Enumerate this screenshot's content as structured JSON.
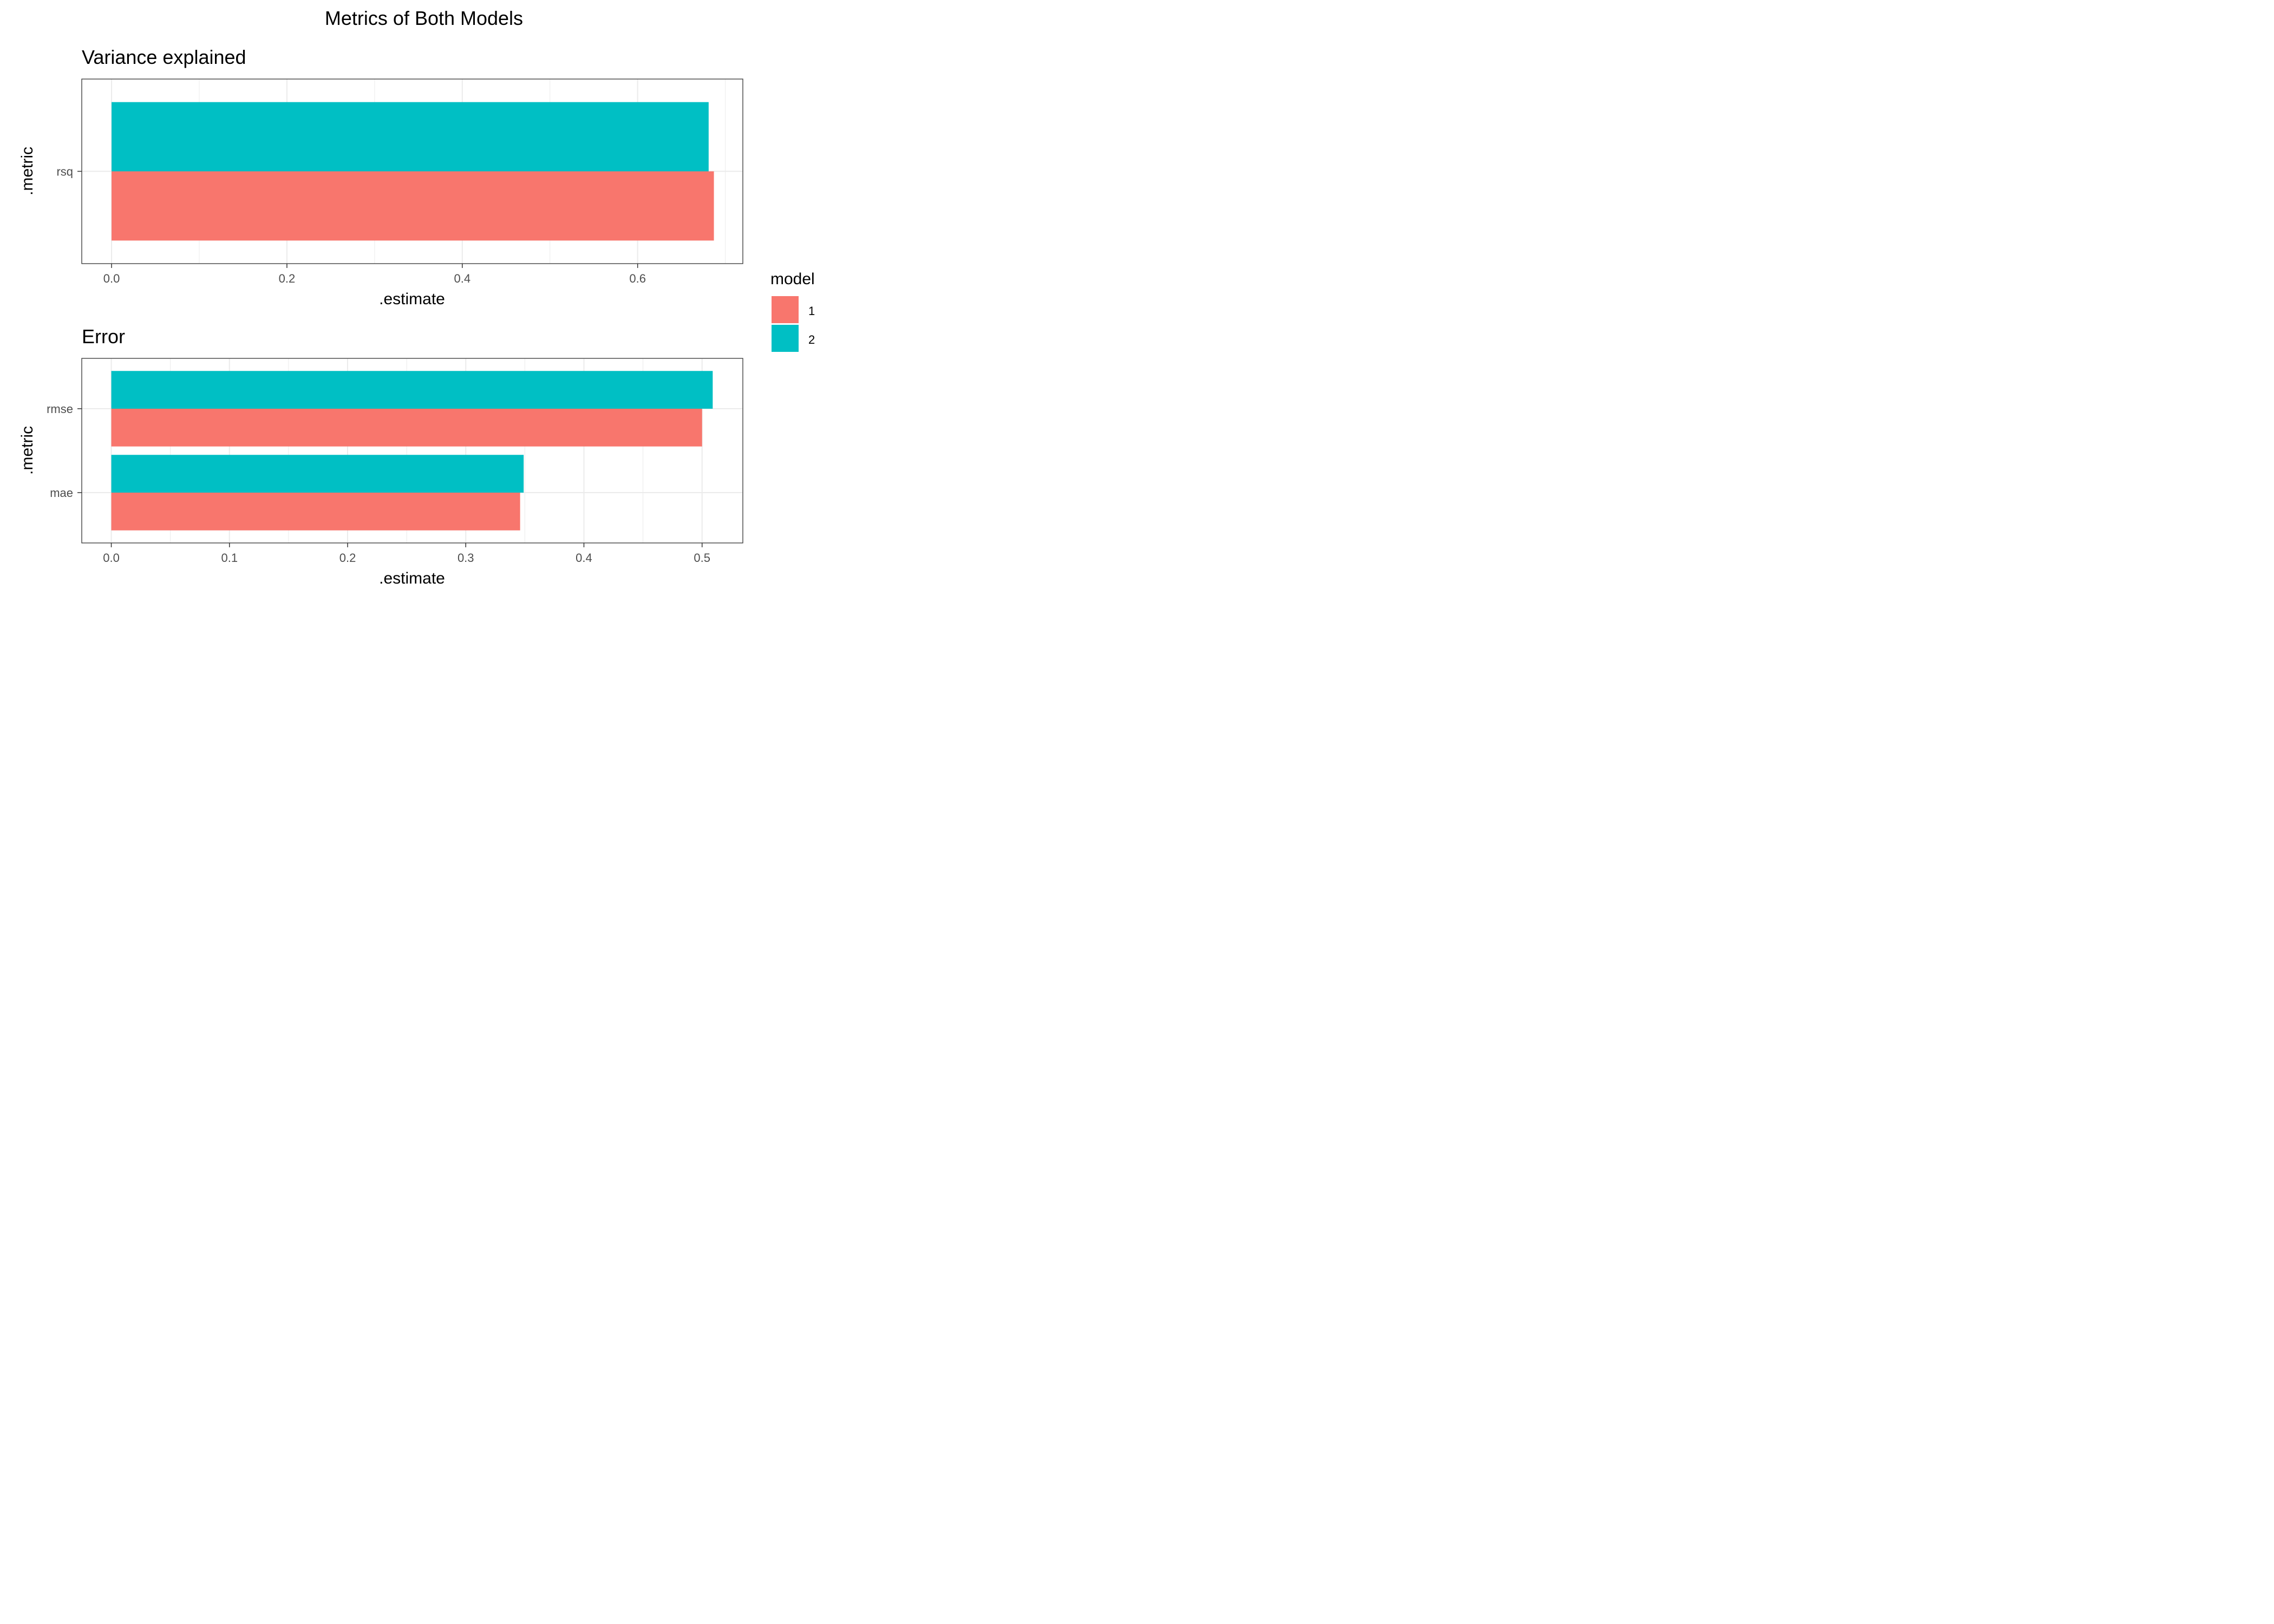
{
  "title": "Metrics of Both Models",
  "colors": {
    "model_1": "#F8766D",
    "model_2": "#00BFC4"
  },
  "legend": {
    "title": "model",
    "items": [
      {
        "label": "1",
        "color": "#F8766D"
      },
      {
        "label": "2",
        "color": "#00BFC4"
      }
    ]
  },
  "chart_data": [
    {
      "type": "bar",
      "orientation": "horizontal",
      "title": "Variance explained",
      "xlabel": ".estimate",
      "ylabel": ".metric",
      "categories": [
        "rsq"
      ],
      "series": [
        {
          "name": "1",
          "values": [
            0.687
          ]
        },
        {
          "name": "2",
          "values": [
            0.681
          ]
        }
      ],
      "xlim": [
        -0.034,
        0.72
      ],
      "xticks": [
        0.0,
        0.2,
        0.4,
        0.6
      ],
      "xtick_labels": [
        "0.0",
        "0.2",
        "0.4",
        "0.6"
      ],
      "grid": true,
      "legend": "right"
    },
    {
      "type": "bar",
      "orientation": "horizontal",
      "title": "Error",
      "xlabel": ".estimate",
      "ylabel": ".metric",
      "categories": [
        "rmse",
        "mae"
      ],
      "series": [
        {
          "name": "1",
          "values": [
            0.5,
            0.346
          ]
        },
        {
          "name": "2",
          "values": [
            0.509,
            0.349
          ]
        }
      ],
      "xlim": [
        -0.025,
        0.5345
      ],
      "xticks": [
        0.0,
        0.1,
        0.2,
        0.3,
        0.4,
        0.5
      ],
      "xtick_labels": [
        "0.0",
        "0.1",
        "0.2",
        "0.3",
        "0.4",
        "0.5"
      ],
      "grid": true,
      "legend": "right"
    }
  ]
}
